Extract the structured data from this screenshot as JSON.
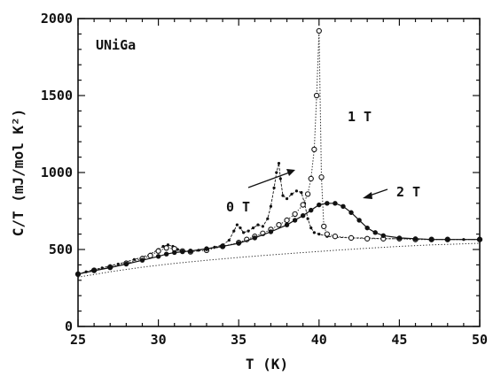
{
  "chart_data": {
    "type": "scatter",
    "title": "",
    "xlabel": "T (K)",
    "ylabel": "C/T (mJ/mol K²)",
    "xlim": [
      25,
      50
    ],
    "ylim": [
      0,
      2000
    ],
    "x_ticks": [
      "25",
      "30",
      "35",
      "40",
      "45",
      "50"
    ],
    "y_ticks": [
      "0",
      "500",
      "1000",
      "1500",
      "2000"
    ],
    "grid": false,
    "legend": "none",
    "annotations": [
      {
        "id": "sample",
        "text": "UNiGa"
      },
      {
        "id": "field0",
        "text": "0 T"
      },
      {
        "id": "field1",
        "text": "1 T"
      },
      {
        "id": "field2",
        "text": "2 T"
      }
    ],
    "series": [
      {
        "id": "s0",
        "marker": "filled-dot",
        "x": [
          25.0,
          25.5,
          26.0,
          26.5,
          27.0,
          27.5,
          28.0,
          28.5,
          29.0,
          29.5,
          30.0,
          30.3,
          30.6,
          30.9,
          31.2,
          31.5,
          32.0,
          32.5,
          33.0,
          33.5,
          34.0,
          34.4,
          34.7,
          34.9,
          35.1,
          35.3,
          35.6,
          35.9,
          36.2,
          36.5,
          36.8,
          37.0,
          37.2,
          37.35,
          37.5,
          37.6,
          37.75,
          38.0,
          38.3,
          38.6,
          38.9,
          39.1,
          39.3,
          39.5,
          39.7,
          40.0,
          40.5,
          41.0,
          42.0,
          43.0,
          44.0,
          45.0,
          46.0,
          47.0,
          48.0,
          49.0,
          50.0
        ],
        "y": [
          340,
          355,
          370,
          380,
          395,
          405,
          420,
          435,
          450,
          470,
          500,
          520,
          530,
          520,
          500,
          490,
          490,
          495,
          505,
          515,
          530,
          560,
          620,
          660,
          640,
          610,
          620,
          640,
          660,
          650,
          700,
          780,
          900,
          1000,
          1060,
          960,
          850,
          830,
          860,
          880,
          870,
          800,
          700,
          640,
          610,
          600,
          585,
          580,
          575,
          575,
          570,
          570,
          570,
          565,
          565,
          565,
          565
        ]
      },
      {
        "id": "s1",
        "marker": "open-circle",
        "x": [
          25.0,
          26.0,
          27.0,
          28.0,
          29.0,
          29.5,
          30.0,
          30.5,
          31.0,
          31.5,
          32.0,
          33.0,
          34.0,
          35.0,
          35.5,
          36.0,
          36.5,
          37.0,
          37.5,
          38.0,
          38.5,
          39.0,
          39.3,
          39.5,
          39.7,
          39.85,
          40.0,
          40.15,
          40.3,
          40.5,
          41.0,
          42.0,
          43.0,
          44.0,
          45.0,
          46.0,
          47.0,
          48.0,
          50.0
        ],
        "y": [
          340,
          365,
          385,
          410,
          440,
          460,
          490,
          510,
          505,
          490,
          485,
          495,
          520,
          545,
          565,
          585,
          605,
          630,
          660,
          690,
          730,
          790,
          860,
          960,
          1150,
          1500,
          1920,
          970,
          650,
          600,
          585,
          575,
          570,
          570,
          570,
          565,
          565,
          565,
          565
        ]
      },
      {
        "id": "s2",
        "marker": "large-dot",
        "x": [
          25.0,
          26.0,
          27.0,
          28.0,
          29.0,
          30.0,
          30.5,
          31.0,
          31.5,
          32.0,
          33.0,
          34.0,
          35.0,
          36.0,
          37.0,
          38.0,
          38.5,
          39.0,
          39.5,
          40.0,
          40.5,
          41.0,
          41.5,
          42.0,
          42.5,
          43.0,
          43.5,
          44.0,
          45.0,
          46.0,
          47.0,
          48.0,
          50.0
        ],
        "y": [
          340,
          362,
          382,
          405,
          430,
          455,
          470,
          480,
          485,
          490,
          505,
          520,
          540,
          575,
          615,
          660,
          690,
          720,
          755,
          790,
          800,
          800,
          780,
          740,
          690,
          640,
          610,
          590,
          575,
          570,
          565,
          565,
          565
        ]
      },
      {
        "id": "lattice",
        "marker": "dotted-line",
        "x": [
          25,
          27,
          29,
          31,
          33,
          35,
          37,
          39,
          41,
          43,
          45,
          47,
          50
        ],
        "y": [
          320,
          355,
          385,
          410,
          430,
          448,
          465,
          480,
          495,
          508,
          520,
          530,
          540
        ]
      }
    ]
  }
}
